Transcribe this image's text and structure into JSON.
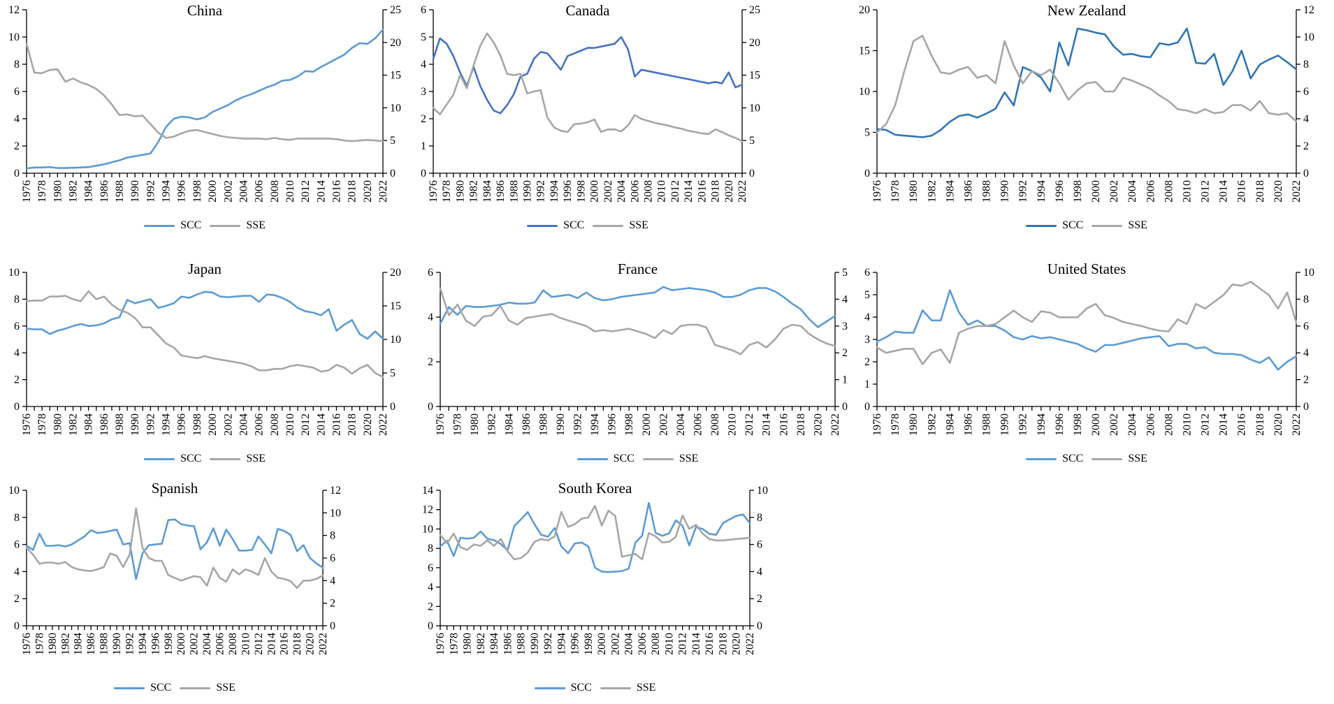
{
  "years": [
    1976,
    1977,
    1978,
    1979,
    1980,
    1981,
    1982,
    1983,
    1984,
    1985,
    1986,
    1987,
    1988,
    1989,
    1990,
    1991,
    1992,
    1993,
    1994,
    1995,
    1996,
    1997,
    1998,
    1999,
    2000,
    2001,
    2002,
    2003,
    2004,
    2005,
    2006,
    2007,
    2008,
    2009,
    2010,
    2011,
    2012,
    2013,
    2014,
    2015,
    2016,
    2017,
    2018,
    2019,
    2020,
    2021,
    2022
  ],
  "x_tick_label_step": 2,
  "axis_color": "#000000",
  "sse_color": "#A6A6A6",
  "chart_data": [
    {
      "type": "line",
      "title": "China",
      "grid": false,
      "legend_position": "bottom",
      "left_axis": {
        "min": 0,
        "max": 12,
        "step": 2
      },
      "right_axis": {
        "min": 0,
        "max": 25,
        "step": 5
      },
      "series": [
        {
          "name": "SCC",
          "axis": "left",
          "color": "#5B9BD5",
          "values": [
            0.35,
            0.42,
            0.42,
            0.45,
            0.38,
            0.38,
            0.4,
            0.42,
            0.45,
            0.55,
            0.65,
            0.8,
            0.95,
            1.15,
            1.25,
            1.35,
            1.45,
            2.3,
            3.4,
            4.0,
            4.15,
            4.1,
            3.95,
            4.1,
            4.5,
            4.75,
            5.0,
            5.35,
            5.6,
            5.8,
            6.05,
            6.3,
            6.5,
            6.8,
            6.85,
            7.1,
            7.5,
            7.45,
            7.8,
            8.1,
            8.4,
            8.7,
            9.2,
            9.55,
            9.5,
            9.9,
            10.55
          ]
        },
        {
          "name": "SSE",
          "axis": "right",
          "color": "#A6A6A6",
          "values": [
            19.8,
            15.4,
            15.3,
            15.8,
            15.9,
            14.0,
            14.5,
            13.9,
            13.5,
            12.9,
            11.9,
            10.5,
            8.9,
            9.0,
            8.7,
            8.8,
            7.5,
            6.2,
            5.4,
            5.6,
            6.1,
            6.5,
            6.6,
            6.3,
            6.0,
            5.7,
            5.5,
            5.4,
            5.3,
            5.3,
            5.3,
            5.2,
            5.4,
            5.2,
            5.1,
            5.3,
            5.3,
            5.3,
            5.3,
            5.3,
            5.2,
            5.0,
            4.9,
            5.0,
            5.1,
            5.0,
            4.9
          ]
        }
      ]
    },
    {
      "type": "line",
      "title": "Canada",
      "grid": false,
      "legend_position": "bottom",
      "left_axis": {
        "min": 0,
        "max": 6,
        "step": 1
      },
      "right_axis": {
        "min": 0,
        "max": 25,
        "step": 5
      },
      "series": [
        {
          "name": "SCC",
          "axis": "left",
          "color": "#4472C4",
          "values": [
            4.2,
            4.95,
            4.75,
            4.3,
            3.7,
            3.2,
            3.9,
            3.2,
            2.7,
            2.3,
            2.2,
            2.5,
            2.9,
            3.55,
            3.65,
            4.2,
            4.45,
            4.4,
            4.1,
            3.8,
            4.3,
            4.4,
            4.5,
            4.6,
            4.6,
            4.65,
            4.7,
            4.75,
            5.0,
            4.55,
            3.55,
            3.8,
            3.75,
            3.7,
            3.65,
            3.6,
            3.55,
            3.5,
            3.45,
            3.4,
            3.35,
            3.3,
            3.35,
            3.3,
            3.7,
            3.15,
            3.25
          ]
        },
        {
          "name": "SSE",
          "axis": "right",
          "color": "#A6A6A6",
          "values": [
            10.0,
            9.0,
            10.5,
            12.0,
            15.0,
            13.0,
            16.5,
            19.5,
            21.4,
            20.0,
            18.0,
            15.2,
            15.0,
            15.2,
            12.2,
            12.5,
            12.7,
            8.5,
            7.0,
            6.5,
            6.3,
            7.5,
            7.6,
            7.8,
            8.2,
            6.3,
            6.7,
            6.7,
            6.4,
            7.3,
            8.9,
            8.3,
            8.0,
            7.7,
            7.5,
            7.3,
            7.0,
            6.8,
            6.5,
            6.3,
            6.1,
            6.0,
            6.7,
            6.3,
            5.8,
            5.4,
            4.9
          ]
        }
      ]
    },
    {
      "type": "line",
      "title": "New Zealand",
      "grid": false,
      "legend_position": "bottom",
      "left_axis": {
        "min": 0,
        "max": 20,
        "step": 5
      },
      "right_axis": {
        "min": 0,
        "max": 12,
        "step": 2
      },
      "series": [
        {
          "name": "SCC",
          "axis": "left",
          "color": "#2E75B6",
          "values": [
            5.4,
            5.3,
            4.7,
            4.6,
            4.5,
            4.4,
            4.6,
            5.3,
            6.3,
            7.0,
            7.2,
            6.8,
            7.3,
            7.9,
            9.9,
            8.3,
            13.0,
            12.5,
            11.7,
            10.0,
            16.0,
            13.2,
            17.7,
            17.5,
            17.2,
            17.0,
            15.5,
            14.5,
            14.6,
            14.3,
            14.2,
            15.9,
            15.7,
            16.0,
            17.7,
            13.5,
            13.4,
            14.6,
            10.8,
            12.5,
            15.0,
            11.6,
            13.3,
            13.9,
            14.4,
            13.6,
            12.7
          ]
        },
        {
          "name": "SSE",
          "axis": "right",
          "color": "#A6A6A6",
          "values": [
            3.0,
            3.6,
            5.0,
            7.5,
            9.7,
            10.1,
            8.6,
            7.4,
            7.3,
            7.6,
            7.8,
            7.0,
            7.2,
            6.6,
            9.7,
            7.9,
            6.6,
            7.5,
            7.2,
            7.6,
            6.6,
            5.4,
            6.1,
            6.6,
            6.7,
            6.0,
            6.0,
            7.0,
            6.8,
            6.5,
            6.2,
            5.7,
            5.3,
            4.7,
            4.6,
            4.4,
            4.7,
            4.4,
            4.5,
            5.0,
            5.0,
            4.6,
            5.3,
            4.4,
            4.3,
            4.4,
            3.8
          ]
        }
      ]
    },
    {
      "type": "line",
      "title": "Japan",
      "grid": false,
      "legend_position": "bottom",
      "left_axis": {
        "min": 0,
        "max": 10,
        "step": 2
      },
      "right_axis": {
        "min": 0,
        "max": 20,
        "step": 5
      },
      "series": [
        {
          "name": "SCC",
          "axis": "left",
          "color": "#5B9BD5",
          "values": [
            5.8,
            5.75,
            5.75,
            5.4,
            5.65,
            5.8,
            6.0,
            6.15,
            6.0,
            6.05,
            6.2,
            6.5,
            6.65,
            7.95,
            7.7,
            7.85,
            8.0,
            7.35,
            7.5,
            7.7,
            8.2,
            8.1,
            8.35,
            8.55,
            8.5,
            8.2,
            8.15,
            8.2,
            8.25,
            8.25,
            7.8,
            8.35,
            8.3,
            8.1,
            7.8,
            7.35,
            7.1,
            7.0,
            6.8,
            7.25,
            5.65,
            6.1,
            6.45,
            5.4,
            5.05,
            5.6,
            5.05
          ]
        },
        {
          "name": "SSE",
          "axis": "right",
          "color": "#A6A6A6",
          "values": [
            15.7,
            15.8,
            15.8,
            16.4,
            16.4,
            16.5,
            16.0,
            15.7,
            17.2,
            16.0,
            16.4,
            15.2,
            14.4,
            14.0,
            13.2,
            11.8,
            11.8,
            10.6,
            9.4,
            8.8,
            7.6,
            7.4,
            7.2,
            7.5,
            7.2,
            7.0,
            6.8,
            6.6,
            6.4,
            6.0,
            5.4,
            5.4,
            5.6,
            5.6,
            6.0,
            6.2,
            6.0,
            5.8,
            5.2,
            5.4,
            6.2,
            5.8,
            4.9,
            5.7,
            6.2,
            5.0,
            4.4
          ]
        }
      ]
    },
    {
      "type": "line",
      "title": "France",
      "grid": false,
      "legend_position": "bottom",
      "left_axis": {
        "min": 0,
        "max": 6,
        "step": 2
      },
      "right_axis": {
        "min": 0,
        "max": 5,
        "step": 1
      },
      "series": [
        {
          "name": "SCC",
          "axis": "left",
          "color": "#5B9BD5",
          "values": [
            3.7,
            4.45,
            4.1,
            4.5,
            4.45,
            4.45,
            4.5,
            4.55,
            4.65,
            4.6,
            4.6,
            4.65,
            5.2,
            4.9,
            4.95,
            5.0,
            4.85,
            5.1,
            4.85,
            4.75,
            4.8,
            4.9,
            4.95,
            5.0,
            5.05,
            5.1,
            5.35,
            5.2,
            5.25,
            5.3,
            5.25,
            5.2,
            5.1,
            4.9,
            4.9,
            5.0,
            5.2,
            5.3,
            5.3,
            5.15,
            4.9,
            4.6,
            4.35,
            3.9,
            3.55,
            3.8,
            4.05
          ]
        },
        {
          "name": "SSE",
          "axis": "right",
          "color": "#A6A6A6",
          "values": [
            4.4,
            3.4,
            3.8,
            3.2,
            3.0,
            3.35,
            3.4,
            3.75,
            3.2,
            3.05,
            3.3,
            3.35,
            3.4,
            3.45,
            3.3,
            3.2,
            3.1,
            3.0,
            2.8,
            2.85,
            2.8,
            2.85,
            2.9,
            2.8,
            2.7,
            2.55,
            2.85,
            2.7,
            3.0,
            3.05,
            3.05,
            2.95,
            2.3,
            2.2,
            2.1,
            1.95,
            2.3,
            2.4,
            2.2,
            2.5,
            2.9,
            3.05,
            3.0,
            2.7,
            2.5,
            2.35,
            2.25
          ]
        }
      ]
    },
    {
      "type": "line",
      "title": "United States",
      "grid": false,
      "legend_position": "bottom",
      "left_axis": {
        "min": 0,
        "max": 6,
        "step": 1
      },
      "right_axis": {
        "min": 0,
        "max": 10,
        "step": 2
      },
      "series": [
        {
          "name": "SCC",
          "axis": "left",
          "color": "#5B9BD5",
          "values": [
            2.9,
            3.1,
            3.35,
            3.3,
            3.3,
            4.3,
            3.85,
            3.85,
            5.2,
            4.2,
            3.65,
            3.85,
            3.6,
            3.6,
            3.4,
            3.1,
            3.0,
            3.15,
            3.05,
            3.1,
            3.0,
            2.9,
            2.8,
            2.6,
            2.45,
            2.75,
            2.75,
            2.85,
            2.95,
            3.05,
            3.1,
            3.15,
            2.7,
            2.8,
            2.8,
            2.6,
            2.65,
            2.4,
            2.35,
            2.35,
            2.3,
            2.1,
            1.95,
            2.2,
            1.65,
            2.0,
            2.25
          ]
        },
        {
          "name": "SSE",
          "axis": "right",
          "color": "#A6A6A6",
          "values": [
            4.4,
            4.0,
            4.15,
            4.3,
            4.3,
            3.15,
            4.0,
            4.25,
            3.25,
            5.5,
            5.8,
            6.0,
            6.0,
            6.15,
            6.65,
            7.15,
            6.65,
            6.3,
            7.1,
            7.0,
            6.65,
            6.65,
            6.65,
            7.3,
            7.65,
            6.8,
            6.6,
            6.3,
            6.15,
            6.0,
            5.8,
            5.65,
            5.6,
            6.5,
            6.15,
            7.65,
            7.3,
            7.8,
            8.3,
            9.1,
            9.0,
            9.3,
            8.8,
            8.3,
            7.3,
            8.5,
            6.25
          ]
        }
      ]
    },
    {
      "type": "line",
      "title": "Spanish",
      "grid": false,
      "legend_position": "bottom",
      "left_axis": {
        "min": 0,
        "max": 10,
        "step": 2
      },
      "right_axis": {
        "min": 0,
        "max": 12,
        "step": 2
      },
      "series": [
        {
          "name": "SCC",
          "axis": "left",
          "color": "#5B9BD5",
          "values": [
            5.9,
            5.6,
            6.8,
            5.9,
            5.9,
            5.95,
            5.85,
            6.0,
            6.3,
            6.6,
            7.05,
            6.85,
            6.9,
            7.0,
            7.1,
            6.0,
            6.1,
            3.45,
            5.35,
            5.95,
            6.0,
            6.05,
            7.8,
            7.85,
            7.5,
            7.4,
            7.35,
            5.65,
            6.15,
            7.2,
            5.9,
            7.1,
            6.4,
            5.55,
            5.55,
            5.6,
            6.6,
            6.0,
            5.35,
            7.15,
            7.0,
            6.7,
            5.5,
            5.95,
            5.0,
            4.6,
            4.3
          ]
        },
        {
          "name": "SSE",
          "axis": "right",
          "color": "#A6A6A6",
          "values": [
            6.9,
            6.3,
            5.5,
            5.6,
            5.6,
            5.5,
            5.65,
            5.2,
            5.0,
            4.9,
            4.85,
            5.0,
            5.2,
            6.4,
            6.2,
            5.2,
            6.3,
            10.4,
            6.9,
            6.0,
            5.75,
            5.75,
            4.5,
            4.25,
            4.0,
            4.2,
            4.4,
            4.3,
            3.55,
            5.15,
            4.25,
            3.9,
            5.0,
            4.55,
            5.0,
            4.8,
            4.5,
            6.0,
            4.8,
            4.25,
            4.15,
            3.95,
            3.35,
            4.0,
            4.0,
            4.15,
            4.45
          ]
        }
      ]
    },
    {
      "type": "line",
      "title": "South Korea",
      "grid": false,
      "legend_position": "bottom",
      "left_axis": {
        "min": 0,
        "max": 14,
        "step": 2
      },
      "right_axis": {
        "min": 0,
        "max": 10,
        "step": 2
      },
      "series": [
        {
          "name": "SCC",
          "axis": "left",
          "color": "#5B9BD5",
          "values": [
            8.2,
            8.8,
            7.2,
            9.1,
            9.0,
            9.1,
            9.75,
            9.0,
            8.85,
            8.45,
            7.8,
            10.3,
            11.0,
            11.75,
            10.5,
            9.4,
            9.2,
            10.1,
            8.2,
            7.5,
            8.5,
            8.6,
            8.2,
            6.0,
            5.6,
            5.55,
            5.6,
            5.65,
            5.9,
            8.6,
            9.3,
            12.7,
            9.6,
            9.3,
            9.55,
            10.9,
            10.35,
            8.3,
            10.2,
            10.0,
            9.5,
            9.4,
            10.6,
            11.0,
            11.35,
            11.5,
            10.6
          ]
        },
        {
          "name": "SSE",
          "axis": "right",
          "color": "#A6A6A6",
          "values": [
            6.7,
            6.1,
            6.8,
            5.8,
            5.6,
            6.0,
            5.9,
            6.3,
            5.9,
            6.4,
            5.5,
            4.9,
            5.0,
            5.4,
            6.2,
            6.4,
            6.3,
            6.6,
            8.4,
            7.3,
            7.5,
            7.9,
            8.0,
            8.85,
            7.4,
            8.5,
            8.1,
            5.1,
            5.2,
            5.3,
            4.9,
            6.85,
            6.6,
            6.15,
            6.2,
            6.55,
            8.15,
            7.15,
            7.45,
            6.8,
            6.4,
            6.3,
            6.3,
            6.35,
            6.4,
            6.45,
            6.5
          ]
        }
      ]
    }
  ]
}
